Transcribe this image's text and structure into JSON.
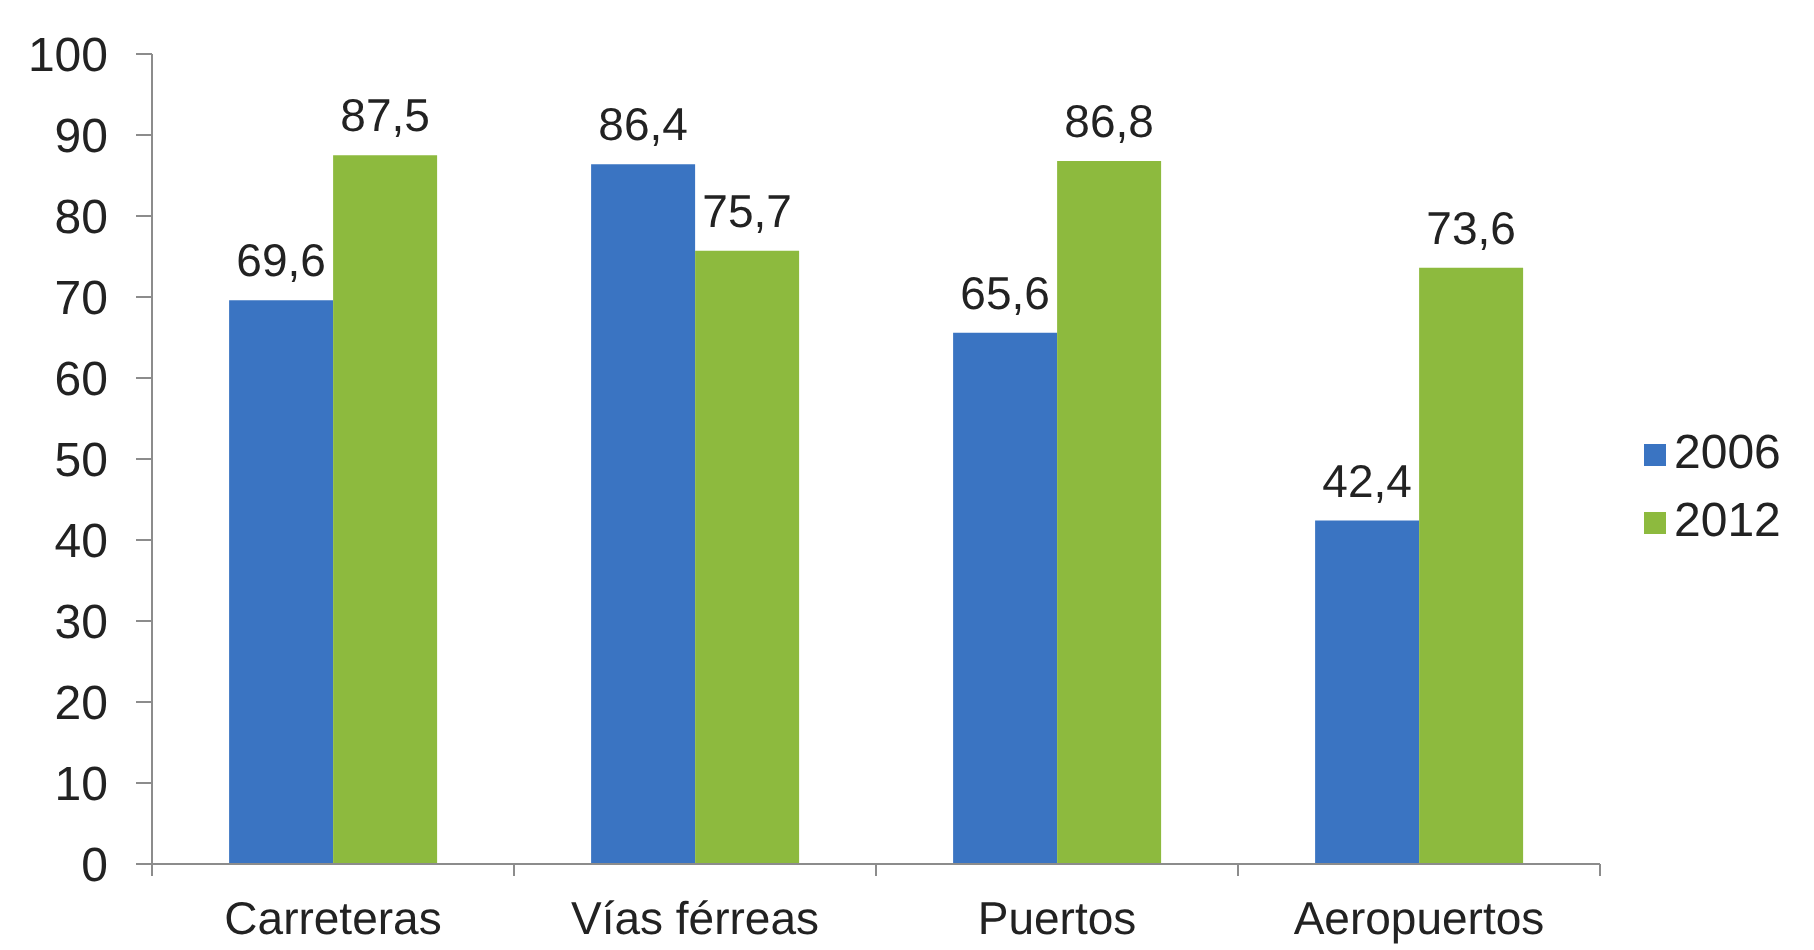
{
  "chart_data": {
    "type": "bar",
    "categories": [
      "Carreteras",
      "Vías férreas",
      "Puertos",
      "Aeropuertos"
    ],
    "series": [
      {
        "name": "2006",
        "color": "#3a74c2",
        "values": [
          69.6,
          86.4,
          65.6,
          42.4
        ],
        "value_labels": [
          "69,6",
          "86,4",
          "65,6",
          "42,4"
        ]
      },
      {
        "name": "2012",
        "color": "#8dba3e",
        "values": [
          87.5,
          75.7,
          86.8,
          73.6
        ],
        "value_labels": [
          "87,5",
          "75,7",
          "86,8",
          "73,6"
        ]
      }
    ],
    "ylim": [
      0,
      100
    ],
    "yticks": [
      0,
      10,
      20,
      30,
      40,
      50,
      60,
      70,
      80,
      90,
      100
    ],
    "legend": "right"
  }
}
